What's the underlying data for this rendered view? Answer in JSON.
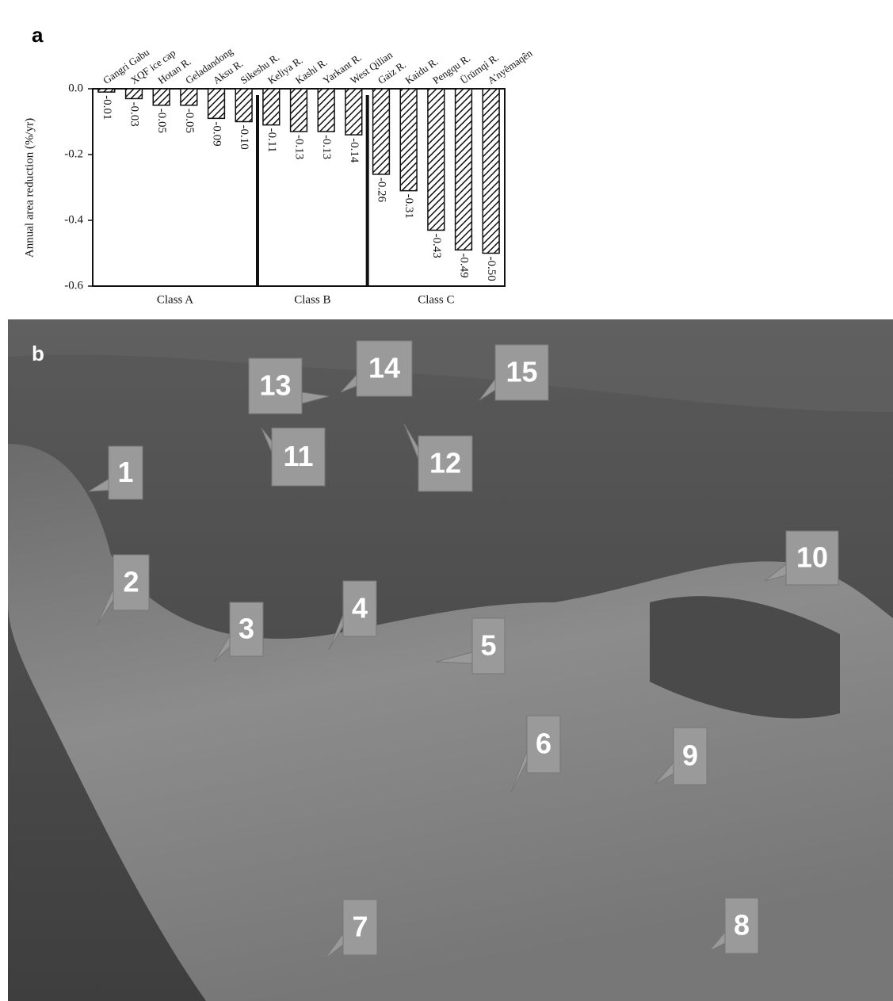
{
  "chart_data": {
    "type": "bar",
    "panel_label": "a",
    "y_label": "Annual area reduction (%/yr)",
    "categories": [
      "Gangri Gabu",
      "XQF ice cap",
      "Hotan R.",
      "Geladandong",
      "Aksu R.",
      "Sikeshu R.",
      "Keliya R.",
      "Kashi R.",
      "Yarkant R.",
      "West Qilian",
      "Gaiz R.",
      "Kaidu R.",
      "Pengqu R.",
      "Ürümqi R.",
      "A'nyêmaqên"
    ],
    "values": [
      -0.01,
      -0.03,
      -0.05,
      -0.05,
      -0.09,
      -0.1,
      -0.11,
      -0.13,
      -0.13,
      -0.14,
      -0.26,
      -0.31,
      -0.43,
      -0.49,
      -0.5
    ],
    "value_labels": [
      "-0.01",
      "-0.03",
      "-0.05",
      "-0.05",
      "-0.09",
      "-0.10",
      "-0.11",
      "-0.13",
      "-0.13",
      "-0.14",
      "-0.26",
      "-0.31",
      "-0.43",
      "-0.49",
      "-0.50"
    ],
    "classes": [
      "Class A",
      "Class A",
      "Class A",
      "Class A",
      "Class A",
      "Class A",
      "Class B",
      "Class B",
      "Class B",
      "Class B",
      "Class C",
      "Class C",
      "Class C",
      "Class C",
      "Class C"
    ],
    "color": "#111111",
    "ylim": [
      -0.6,
      0
    ],
    "yticks": [
      {
        "value": 0,
        "label": "0.0"
      },
      -0.2,
      -0.4,
      -0.6
    ]
  },
  "map": {
    "panel_label": "b",
    "markers": [
      "1",
      "2",
      "3",
      "4",
      "5",
      "6",
      "7",
      "8",
      "9",
      "10",
      "11",
      "12",
      "13",
      "14",
      "15"
    ]
  }
}
